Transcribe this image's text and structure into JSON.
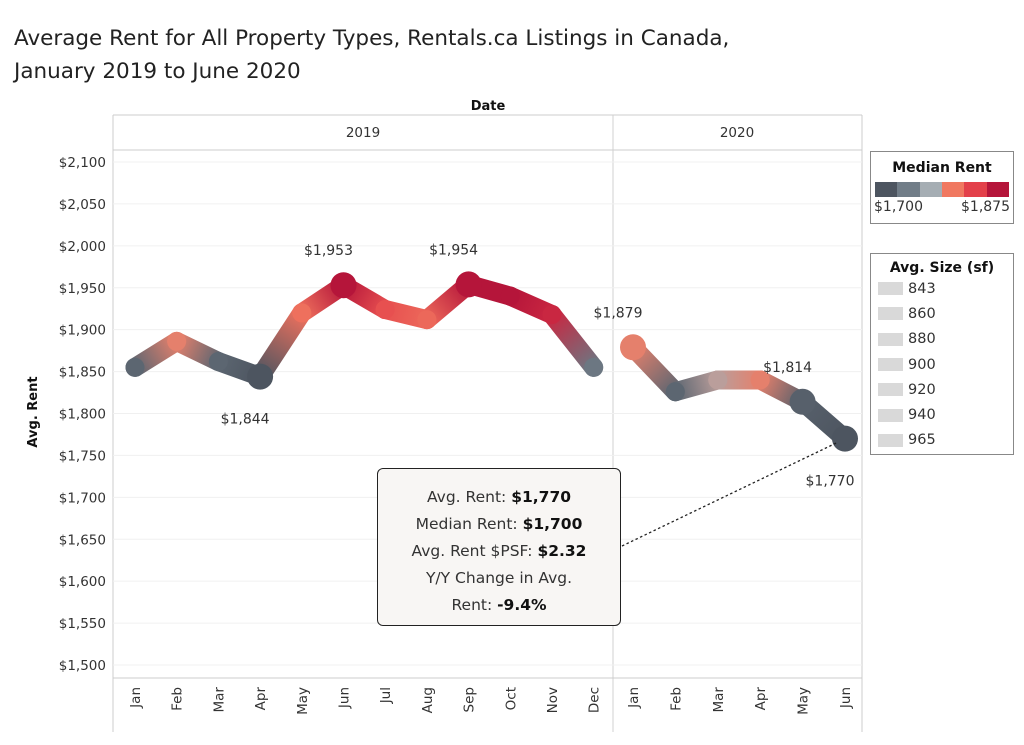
{
  "title_line1": "Average Rent for All Property Types, Rentals.ca Listings in Canada,",
  "title_line2": "January 2019 to June 2020",
  "chart_data": {
    "type": "line",
    "column_axis_title": "Date",
    "ylabel": "Avg. Rent",
    "ylim": [
      1490,
      2110
    ],
    "yticks": [
      "$1,500",
      "$1,550",
      "$1,600",
      "$1,650",
      "$1,700",
      "$1,750",
      "$1,800",
      "$1,850",
      "$1,900",
      "$1,950",
      "$2,000",
      "$2,050",
      "$2,100"
    ],
    "grid": true,
    "panels": [
      {
        "year": "2019",
        "months": [
          "Jan",
          "Feb",
          "Mar",
          "Apr",
          "May",
          "Jun",
          "Jul",
          "Aug",
          "Sep",
          "Oct",
          "Nov",
          "Dec"
        ],
        "avg_rent": [
          1855,
          1886,
          1862,
          1844,
          1920,
          1953,
          1924,
          1912,
          1954,
          1940,
          1918,
          1855
        ],
        "median_rent": [
          1715,
          1800,
          1715,
          1700,
          1810,
          1875,
          1830,
          1815,
          1875,
          1875,
          1860,
          1730
        ]
      },
      {
        "year": "2020",
        "months": [
          "Jan",
          "Feb",
          "Mar",
          "Apr",
          "May",
          "Jun"
        ],
        "avg_rent": [
          1879,
          1826,
          1840,
          1840,
          1814,
          1770
        ],
        "median_rent": [
          1800,
          1715,
          1780,
          1800,
          1710,
          1700
        ]
      }
    ],
    "data_labels": [
      {
        "panel": 0,
        "month": "Apr",
        "text": "$1,844",
        "position": "below"
      },
      {
        "panel": 0,
        "month": "Jun",
        "text": "$1,953",
        "position": "above"
      },
      {
        "panel": 0,
        "month": "Sep",
        "text": "$1,954",
        "position": "above"
      },
      {
        "panel": 1,
        "month": "Jan",
        "text": "$1,879",
        "position": "above"
      },
      {
        "panel": 1,
        "month": "May",
        "text": "$1,814",
        "position": "above"
      },
      {
        "panel": 1,
        "month": "Jun",
        "text": "$1,770",
        "position": "below"
      }
    ],
    "color_legend": {
      "title": "Median Rent",
      "min_label": "$1,700",
      "max_label": "$1,875",
      "palette": [
        "#4d5560",
        "#717d88",
        "#a5adb3",
        "#f07860",
        "#e3404a",
        "#b5153a"
      ]
    },
    "size_legend": {
      "title": "Avg. Size (sf)",
      "values": [
        "843",
        "860",
        "880",
        "900",
        "920",
        "940",
        "965"
      ]
    },
    "tooltip": {
      "lines": [
        {
          "label": "Avg. Rent: ",
          "value": "$1,770"
        },
        {
          "label": "Median Rent: ",
          "value": "$1,700"
        },
        {
          "label": "Avg. Rent $PSF: ",
          "value": "$2.32"
        },
        {
          "label": "Y/Y Change in Avg.",
          "value": ""
        },
        {
          "label": "Rent: ",
          "value": "-9.4%"
        }
      ]
    }
  }
}
